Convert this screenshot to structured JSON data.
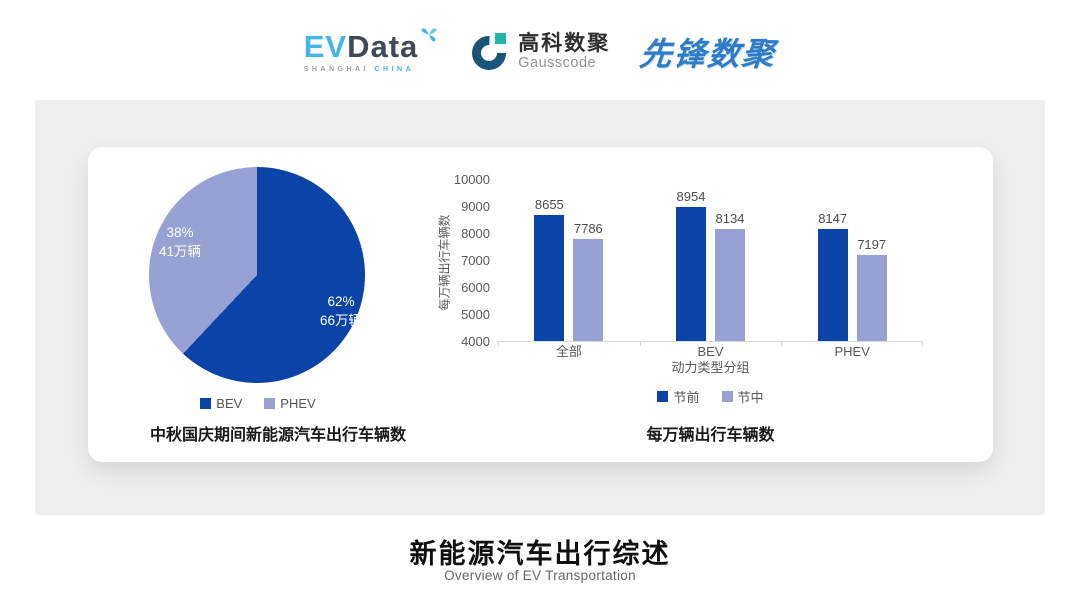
{
  "header": {
    "evdata": {
      "part1": "EV",
      "part2": "Data",
      "sub_left": "SHANGHAI",
      "sub_right": "CHINA"
    },
    "gausscode": {
      "name_cn": "高科数聚",
      "name_en": "Gausscode"
    },
    "xianfeng": "先锋数聚"
  },
  "colors": {
    "primary_blue": "#0B44A8",
    "secondary_periwinkle": "#97A1D4",
    "panel_gray": "#EFEFEF",
    "axis_gray": "#595959",
    "evdata_blue": "#41B7E9",
    "gausscode_navy": "#1A547A",
    "gausscode_teal": "#1FB5A8",
    "xianfeng_blue": "#2E7CC9"
  },
  "chart_data": [
    {
      "type": "pie",
      "title": "中秋国庆期间新能源汽车出行车辆数",
      "start_angle": "top",
      "direction": "clockwise",
      "legend_position": "bottom",
      "slices": [
        {
          "label": "BEV",
          "percent": 62,
          "percent_label": "62%",
          "value_label": "66万辆",
          "color": "#0B44A8"
        },
        {
          "label": "PHEV",
          "percent": 38,
          "percent_label": "38%",
          "value_label": "41万辆",
          "color": "#97A1D4"
        }
      ]
    },
    {
      "type": "bar",
      "title": "每万辆出行车辆数",
      "xlabel": "动力类型分组",
      "ylabel": "每万辆出行车辆数",
      "ylim": [
        4000,
        10000
      ],
      "ytick_step": 1000,
      "grid": false,
      "data_labels": true,
      "legend_position": "bottom",
      "categories": [
        "全部",
        "BEV",
        "PHEV"
      ],
      "series": [
        {
          "name": "节前",
          "color": "#0B44A8",
          "values": [
            8655,
            8954,
            8147
          ]
        },
        {
          "name": "节中",
          "color": "#97A1D4",
          "values": [
            7786,
            8134,
            7197
          ]
        }
      ]
    }
  ],
  "footer": {
    "title": "新能源汽车出行综述",
    "subtitle": "Overview of EV Transportation"
  }
}
